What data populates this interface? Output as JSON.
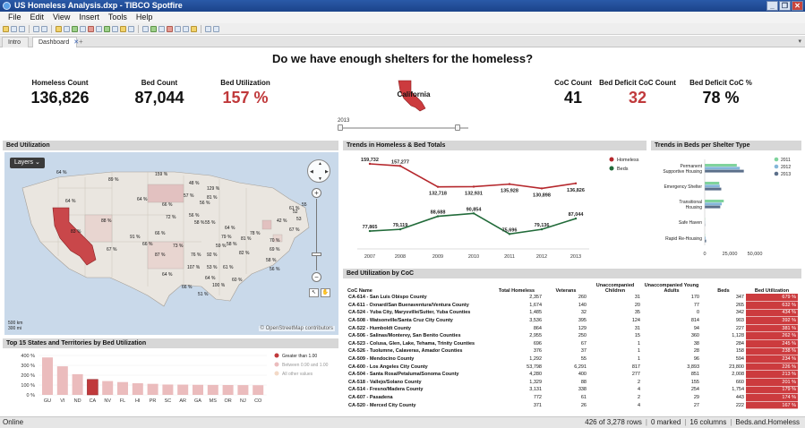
{
  "window": {
    "title": "US Homeless Analysis.dxp - TIBCO Spotfire"
  },
  "menu": [
    "File",
    "Edit",
    "View",
    "Insert",
    "Tools",
    "Help"
  ],
  "tabs": {
    "intro": "Intro",
    "dashboard": "Dashboard",
    "add": "+"
  },
  "header": {
    "title": "Do we have enough shelters for the homeless?",
    "state_label": "California",
    "year_label": "2013"
  },
  "kpis": {
    "homeless_count": {
      "label": "Homeless Count",
      "value": "136,826"
    },
    "bed_count": {
      "label": "Bed Count",
      "value": "87,044"
    },
    "bed_utilization": {
      "label": "Bed Utilization",
      "value": "157 %"
    },
    "coc_count": {
      "label": "CoC Count",
      "value": "41"
    },
    "bed_deficit_coc": {
      "label": "Bed Deficit CoC Count",
      "value": "32"
    },
    "bed_deficit_pct": {
      "label": "Bed Deficit CoC %",
      "value": "78 %"
    }
  },
  "colors": {
    "accent_red": "#c0393b",
    "homeless_line": "#b5272c",
    "beds_line": "#226b3a"
  },
  "map": {
    "title": "Bed Utilization",
    "layers_label": "Layers",
    "scale_km": "500 km",
    "scale_mi": "300 mi",
    "attribution": "© OpenStreetMap contributors",
    "zoom_in": "+",
    "zoom_out": "−",
    "zoom_levels": [
      "55",
      "52",
      "53"
    ],
    "labels": [
      "64 %",
      "89 %",
      "159 %",
      "48 %",
      "64 %",
      "129 %",
      "57 %",
      "81 %",
      "64 %",
      "66 %",
      "56 %",
      "61 %",
      "42 %",
      "72 %",
      "83 %",
      "91 %",
      "56 %",
      "58 %",
      "55 %",
      "64 %",
      "88 %",
      "67 %",
      "79 %",
      "66 %",
      "58 %",
      "66 %",
      "73 %",
      "87 %",
      "67 %",
      "76 %",
      "92 %",
      "70 %",
      "69 %",
      "81 %",
      "78 %",
      "59 %",
      "82 %",
      "107 %",
      "53 %",
      "61 %",
      "58 %",
      "56 %",
      "64 %",
      "60 %",
      "64 %",
      "66 %",
      "51 %",
      "100 %"
    ]
  },
  "bar_chart": {
    "title": "Top 15 States and Territories by Bed Utilization",
    "legend": [
      "Greater than 1.00",
      "Between 0.90 and 1.00",
      "All other values"
    ]
  },
  "trend_chart": {
    "title": "Trends in Homeless & Bed Totals"
  },
  "shelter_chart": {
    "title": "Trends in Beds per Shelter Type"
  },
  "chart_data": [
    {
      "type": "bar",
      "title": "Top 15 States and Territories by Bed Utilization",
      "categories": [
        "GU",
        "VI",
        "ND",
        "CA",
        "NV",
        "FL",
        "HI",
        "PR",
        "SC",
        "AR",
        "GA",
        "MS",
        "OR",
        "NJ",
        "CO"
      ],
      "values": [
        380,
        290,
        210,
        157,
        140,
        130,
        118,
        112,
        105,
        104,
        102,
        101,
        100,
        99,
        98
      ],
      "ylim": [
        0,
        400
      ],
      "yticks": [
        "0 %",
        "100 %",
        "200 %",
        "300 %",
        "400 %"
      ],
      "highlight": "CA",
      "colors": {
        "selected": "#c0393b",
        "other": "#ebbcbd"
      }
    },
    {
      "type": "line",
      "title": "Trends in Homeless & Bed Totals",
      "x": [
        "2007",
        "2008",
        "2009",
        "2010",
        "2011",
        "2012",
        "2013"
      ],
      "series": [
        {
          "name": "Homeless",
          "values": [
            159732,
            157277,
            132718,
            132931,
            135928,
            130898,
            136826
          ],
          "labels": [
            "159,732",
            "157,277",
            "132,718",
            "132,931",
            "135,928",
            "130,898",
            "136,826"
          ],
          "color": "#b5272c"
        },
        {
          "name": "Beds",
          "values": [
            77865,
            79119,
            88688,
            90854,
            75696,
            79136,
            87044
          ],
          "labels": [
            "77,865",
            "79,119",
            "88,688",
            "90,854",
            "75,696",
            "79,136",
            "87,044"
          ],
          "color": "#226b3a"
        }
      ],
      "legend_position": "right"
    },
    {
      "type": "bar",
      "orientation": "horizontal",
      "title": "Trends in Beds per Shelter Type",
      "categories": [
        "Permanent Supportive Housing",
        "Emergency Shelter",
        "Transitional Housing",
        "Safe Haven",
        "Rapid Re-Housing"
      ],
      "category_lines": [
        [
          "Permanent",
          "Supportive Housing"
        ],
        [
          "Emergency Shelter"
        ],
        [
          "Transitional",
          "Housing"
        ],
        [
          "Safe Haven"
        ],
        [
          "Rapid Re-Housing"
        ]
      ],
      "series": [
        {
          "name": "2011",
          "values": [
            32000,
            14500,
            19000,
            200,
            0
          ],
          "color": "#7fd39c"
        },
        {
          "name": "2012",
          "values": [
            35000,
            15000,
            17000,
            300,
            800
          ],
          "color": "#84b6d9"
        },
        {
          "name": "2013",
          "values": [
            39000,
            16500,
            15500,
            400,
            1400
          ],
          "color": "#5b6f8a"
        }
      ],
      "xlim": [
        0,
        50000
      ],
      "xticks": [
        "0",
        "25,000",
        "50,000"
      ],
      "legend_position": "top-right"
    }
  ],
  "table": {
    "title": "Bed Utilization by CoC",
    "columns": [
      "CoC Name",
      "Total Homeless",
      "Veterans",
      "Unaccompanied Children",
      "Unaccompanied Young Adults",
      "Beds",
      "Bed Utilization"
    ],
    "rows": [
      [
        "CA-614 - San Luis Obispo County",
        "2,357",
        "260",
        "31",
        "170",
        "347",
        "679 %"
      ],
      [
        "CA-611 - Oxnard/San Buenaventura/Ventura County",
        "1,674",
        "140",
        "20",
        "77",
        "265",
        "632 %"
      ],
      [
        "CA-524 - Yuba City, Marysville/Sutter, Yuba Counties",
        "1,485",
        "32",
        "35",
        "0",
        "342",
        "434 %"
      ],
      [
        "CA-508 - Watsonville/Santa Cruz City County",
        "3,536",
        "395",
        "124",
        "814",
        "903",
        "392 %"
      ],
      [
        "CA-522 - Humboldt County",
        "864",
        "129",
        "31",
        "94",
        "227",
        "381 %"
      ],
      [
        "CA-506 - Salinas/Monterey, San Benito Counties",
        "2,955",
        "250",
        "15",
        "360",
        "1,128",
        "262 %"
      ],
      [
        "CA-523 - Colusa, Glen, Lake, Tehama, Trinity Counties",
        "696",
        "67",
        "1",
        "38",
        "284",
        "245 %"
      ],
      [
        "CA-526 - Tuolumne, Calaveras, Amador Counties",
        "376",
        "37",
        "1",
        "28",
        "158",
        "238 %"
      ],
      [
        "CA-509 - Mendocino County",
        "1,292",
        "55",
        "1",
        "96",
        "594",
        "234 %"
      ],
      [
        "CA-600 - Los Angeles City County",
        "53,798",
        "6,291",
        "817",
        "3,893",
        "23,800",
        "226 %"
      ],
      [
        "CA-504 - Santa Rosa/Petaluma/Sonoma County",
        "4,280",
        "400",
        "277",
        "851",
        "2,008",
        "213 %"
      ],
      [
        "CA-518 - Vallejo/Solano County",
        "1,329",
        "88",
        "2",
        "155",
        "660",
        "201 %"
      ],
      [
        "CA-514 - Fresno/Madera County",
        "3,131",
        "338",
        "4",
        "254",
        "1,754",
        "179 %"
      ],
      [
        "CA-607 - Pasadena",
        "772",
        "61",
        "2",
        "29",
        "443",
        "174 %"
      ],
      [
        "CA-520 - Merced City County",
        "371",
        "26",
        "4",
        "27",
        "222",
        "167 %"
      ]
    ]
  },
  "status": {
    "left": "Online",
    "rows": "426 of 3,278 rows",
    "marked": "0 marked",
    "columns": "16 columns",
    "table": "Beds.and.Homeless"
  }
}
